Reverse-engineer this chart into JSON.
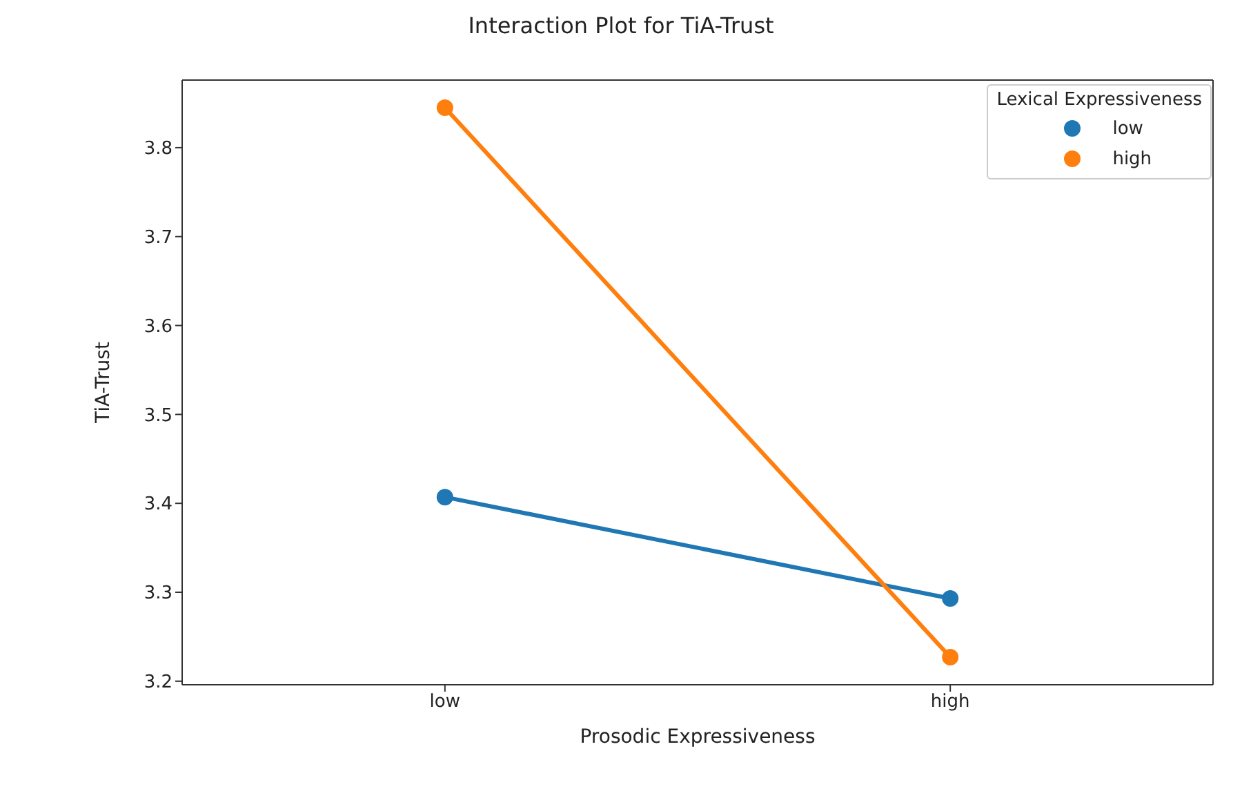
{
  "chart_data": {
    "type": "line",
    "title": "Interaction Plot for TiA-Trust",
    "xlabel": "Prosodic Expressiveness",
    "ylabel": "TiA-Trust",
    "legend_title": "Lexical Expressiveness",
    "categories": [
      "low",
      "high"
    ],
    "series": [
      {
        "name": "low",
        "color": "#1f77b4",
        "values": [
          3.407,
          3.293
        ]
      },
      {
        "name": "high",
        "color": "#ff7f0e",
        "values": [
          3.845,
          3.227
        ]
      }
    ],
    "ylim": [
      3.196,
      3.876
    ],
    "yticks": [
      3.2,
      3.3,
      3.4,
      3.5,
      3.6,
      3.7,
      3.8
    ],
    "legend": "top right",
    "marker": "circle",
    "line_style": "solid"
  }
}
